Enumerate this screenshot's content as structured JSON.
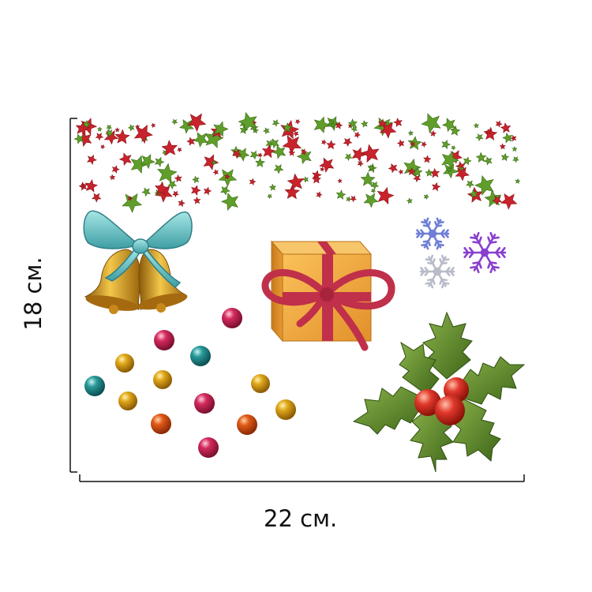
{
  "dimensions": {
    "width_label": "22 см.",
    "height_label": "18 см."
  },
  "colors": {
    "background": "#ffffff",
    "ruler": "#111111",
    "star_red": "#c8232c",
    "star_green": "#5f9e2a",
    "ribbon_teal": "#6cc3c6",
    "bell_gold": "#d9a02a",
    "gift_orange": "#f0a532",
    "ribbon_crimson": "#c0304a",
    "holly_green": "#4f7d22",
    "berry_red": "#e0382c",
    "snowflake_blue": "#6f7fd6",
    "snowflake_purple": "#8a3fd0",
    "snowflake_silver": "#b8bcc8",
    "ornament_pink": "#d42a5c",
    "ornament_gold": "#e0a81a",
    "ornament_teal": "#2a9a9a",
    "ornament_orange": "#e05a18"
  },
  "decorations": {
    "star_garland": "star-garland",
    "bells": "bells-with-bow",
    "gift": "gift-box",
    "snowflakes": "snowflakes",
    "holly": "holly-with-berries",
    "ornaments": "ornament-balls"
  }
}
